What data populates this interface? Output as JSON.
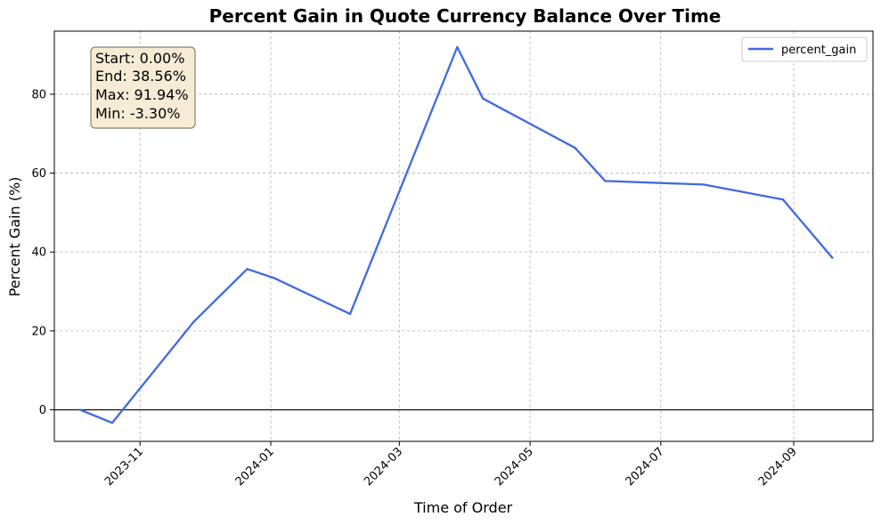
{
  "chart_data": {
    "type": "line",
    "title": "Percent Gain in Quote Currency Balance Over Time",
    "xlabel": "Time of Order",
    "ylabel": "Percent Gain (%)",
    "x_tick_labels": [
      "2023-11",
      "2024-01",
      "2024-03",
      "2024-05",
      "2024-07",
      "2024-09"
    ],
    "x_ticks": [
      "2023-11-01",
      "2024-01-01",
      "2024-03-01",
      "2024-05-01",
      "2024-07-01",
      "2024-09-01"
    ],
    "y_ticks": [
      0,
      20,
      40,
      60,
      80
    ],
    "xlim": [
      "2023-09-22",
      "2024-10-08"
    ],
    "ylim": [
      -8,
      96
    ],
    "grid": true,
    "legend_position": "top-right",
    "horizontal_line": 0,
    "colors": {
      "series": "#4169e1",
      "zero_line": "#000000",
      "stats_box_fill": "#f7ebd5",
      "stats_box_border": "#8a7f70"
    },
    "series": [
      {
        "name": "percent_gain",
        "points": [
          {
            "x": "2023-10-04",
            "y": 0.0
          },
          {
            "x": "2023-10-19",
            "y": -3.3
          },
          {
            "x": "2023-11-26",
            "y": 22.3
          },
          {
            "x": "2023-12-21",
            "y": 35.7
          },
          {
            "x": "2024-01-03",
            "y": 33.3
          },
          {
            "x": "2024-02-07",
            "y": 24.3
          },
          {
            "x": "2024-03-28",
            "y": 91.94
          },
          {
            "x": "2024-04-09",
            "y": 78.9
          },
          {
            "x": "2024-05-22",
            "y": 66.4
          },
          {
            "x": "2024-06-05",
            "y": 58.0
          },
          {
            "x": "2024-07-21",
            "y": 57.1
          },
          {
            "x": "2024-08-27",
            "y": 53.3
          },
          {
            "x": "2024-09-19",
            "y": 38.56
          }
        ]
      }
    ],
    "stats_box": {
      "start": "Start: 0.00%",
      "end": "End: 38.56%",
      "max": "Max: 91.94%",
      "min": "Min: -3.30%"
    }
  }
}
